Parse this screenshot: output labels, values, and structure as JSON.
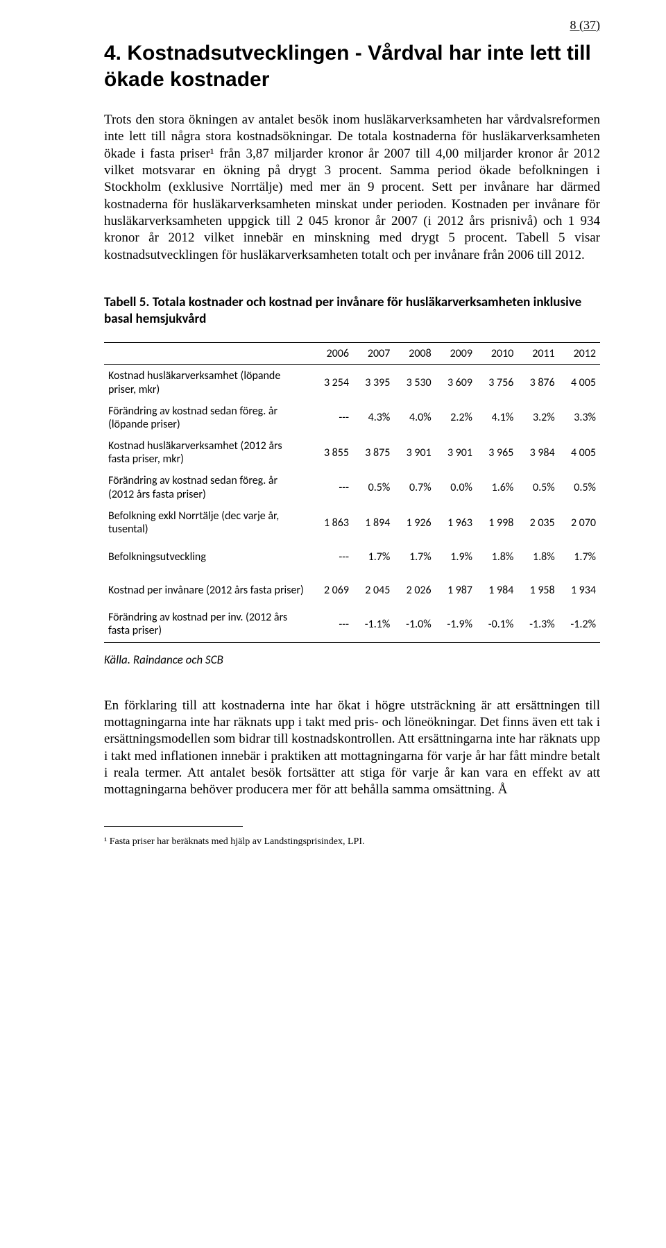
{
  "page_number": "8 (37)",
  "section": {
    "title": "4. Kostnadsutvecklingen - Vårdval har inte lett till ökade kostnader",
    "paragraph_main": "Trots den stora ökningen av antalet besök inom husläkarverksamheten har vårdvalsreformen inte lett till några stora kostnadsökningar. De totala kostnaderna för husläkarverksamheten ökade i fasta priser¹ från 3,87 miljarder kronor år 2007 till 4,00 miljarder kronor år 2012 vilket motsvarar en ökning på drygt 3 procent. Samma period ökade befolkningen i Stockholm (exklusive Norrtälje) med mer än 9 procent. Sett per invånare har därmed kostnaderna för husläkarverksamheten minskat under perioden. Kostnaden per invånare för husläkarverksamheten uppgick till 2 045 kronor år 2007 (i 2012 års prisnivå) och 1 934 kronor år 2012 vilket innebär en minskning med drygt 5 procent. Tabell 5 visar kostnadsutvecklingen för husläkarverksamheten totalt och per invånare från 2006 till 2012."
  },
  "table": {
    "title": "Tabell 5. Totala kostnader och kostnad per invånare för husläkarverksamheten inklusive basal hemsjukvård",
    "columns": [
      "",
      "2006",
      "2007",
      "2008",
      "2009",
      "2010",
      "2011",
      "2012"
    ],
    "rows": [
      [
        "Kostnad husläkarverksamhet (löpande priser, mkr)",
        "3 254",
        "3 395",
        "3 530",
        "3 609",
        "3 756",
        "3 876",
        "4 005"
      ],
      [
        "Förändring av kostnad sedan föreg. år (löpande priser)",
        "---",
        "4.3%",
        "4.0%",
        "2.2%",
        "4.1%",
        "3.2%",
        "3.3%"
      ],
      [
        "Kostnad husläkarverksamhet (2012 års fasta priser, mkr)",
        "3 855",
        "3 875",
        "3 901",
        "3 901",
        "3 965",
        "3 984",
        "4 005"
      ],
      [
        "Förändring av kostnad sedan föreg. år\n(2012 års fasta priser)",
        "---",
        "0.5%",
        "0.7%",
        "0.0%",
        "1.6%",
        "0.5%",
        "0.5%"
      ],
      [
        "Befolkning exkl Norrtälje (dec varje år, tusental)",
        "1 863",
        "1 894",
        "1 926",
        "1 963",
        "1 998",
        "2 035",
        "2 070"
      ],
      [
        "Befolkningsutveckling",
        "---",
        "1.7%",
        "1.7%",
        "1.9%",
        "1.8%",
        "1.8%",
        "1.7%"
      ],
      [
        "Kostnad per invånare (2012 års fasta priser)",
        "2 069",
        "2 045",
        "2 026",
        "1 987",
        "1 984",
        "1 958",
        "1 934"
      ],
      [
        "Förändring av kostnad per inv. (2012 års fasta priser)",
        "---",
        "-1.1%",
        "-1.0%",
        "-1.9%",
        "-0.1%",
        "-1.3%",
        "-1.2%"
      ]
    ],
    "source": "Källa. Raindance och SCB"
  },
  "paragraph_bottom": "En förklaring till att kostnaderna inte har ökat i högre utsträckning är att ersättningen till mottagningarna inte har räknats upp i takt med pris- och löneökningar. Det finns även ett tak i ersättningsmodellen som bidrar till kostnadskontrollen. Att ersättningarna inte har räknats upp i takt med inflationen innebär i praktiken att mottagningarna för varje år har fått mindre betalt i reala termer. Att antalet besök fortsätter att stiga för varje år kan vara en effekt av att mottagningarna behöver producera mer för att behålla samma omsättning. Å",
  "footnote": "¹ Fasta priser har beräknats med hjälp av Landstingsprisindex, LPI."
}
